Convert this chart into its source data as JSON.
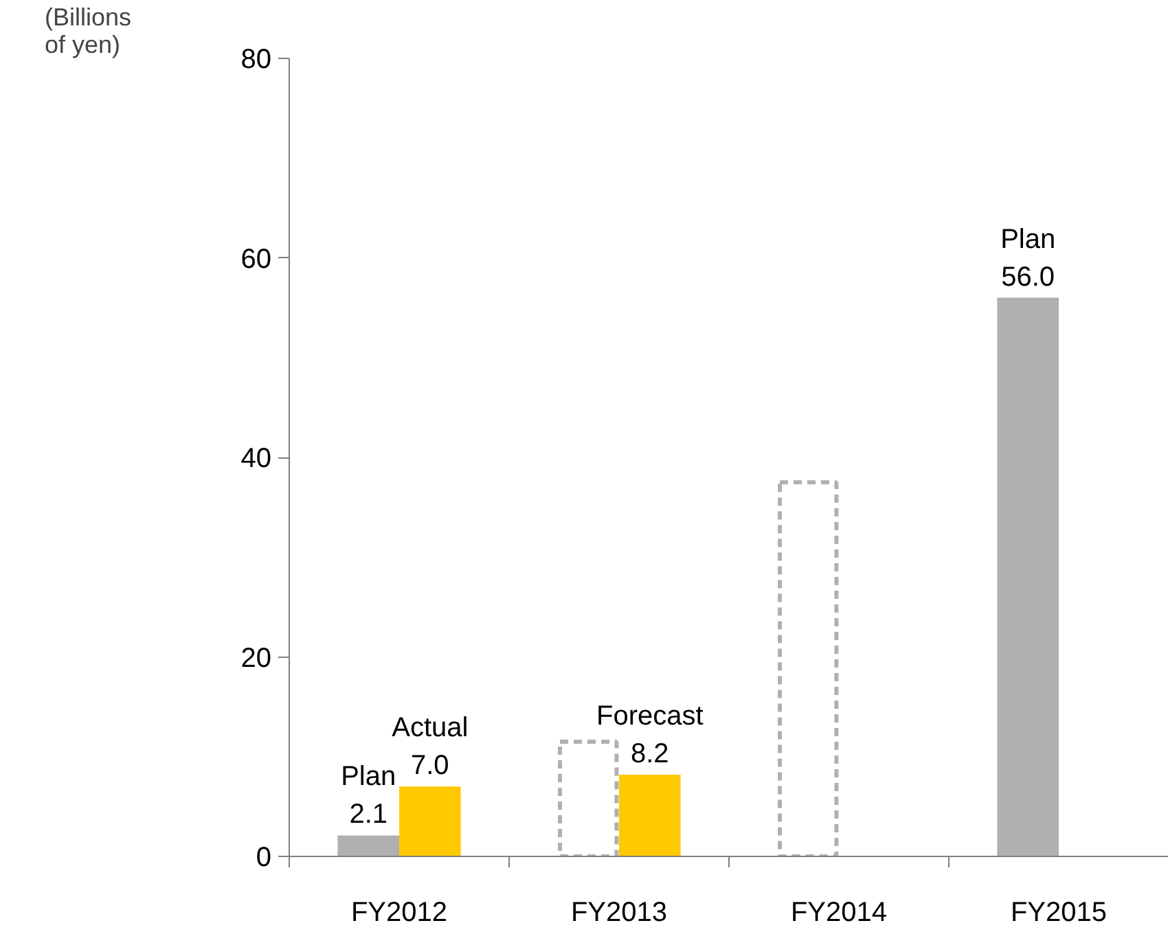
{
  "chart_data": {
    "type": "bar",
    "ylabel": "(Billions\nof yen)",
    "categories": [
      "FY2012",
      "FY2013",
      "FY2014",
      "FY2015"
    ],
    "series": [
      {
        "color": "#b0b0b0",
        "values": [
          2.1,
          null,
          null,
          56.0
        ],
        "value_labels": [
          "Plan\n2.1",
          null,
          null,
          "Plan\n56.0"
        ]
      },
      {
        "color": "#ffc800",
        "values": [
          7.0,
          8.2,
          null,
          null
        ],
        "value_labels": [
          "Actual\n7.0",
          "Forecast\n8.2",
          null,
          null
        ]
      },
      {
        "color": "#b0b0b0",
        "values": [
          null,
          11.5,
          37.5,
          null
        ],
        "line_style": "dashed"
      }
    ],
    "ylim": [
      0,
      80
    ],
    "yticks": [
      0,
      20,
      40,
      60,
      80
    ],
    "grid": false
  }
}
